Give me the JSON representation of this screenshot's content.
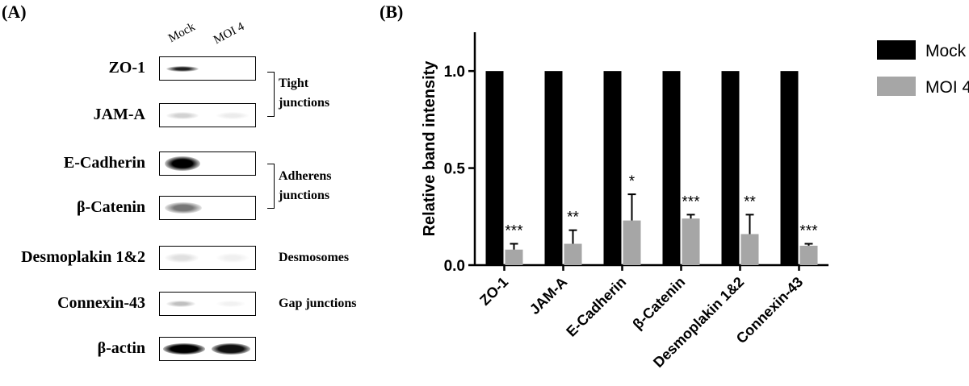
{
  "panel_a": {
    "label": "(A)",
    "lane_headers": [
      "Mock",
      "MOI 4"
    ],
    "proteins": [
      "ZO-1",
      "JAM-A",
      "E-Cadherin",
      "β-Catenin",
      "Desmoplakin 1&2",
      "Connexin-43",
      "β-actin"
    ],
    "groups": [
      {
        "line1": "Tight",
        "line2": "junctions"
      },
      {
        "line1": "Adherens",
        "line2": "junctions"
      },
      {
        "line1": "Desmosomes",
        "line2": ""
      },
      {
        "line1": "Gap junctions",
        "line2": ""
      }
    ]
  },
  "panel_b": {
    "label": "(B)"
  },
  "chart_data": {
    "type": "bar",
    "categories": [
      "ZO-1",
      "JAM-A",
      "E-Cadherin",
      "β-Catenin",
      "Desmoplakin 1&2",
      "Connexin-43"
    ],
    "series": [
      {
        "name": "Mock",
        "color": "#000000",
        "values": [
          1.0,
          1.0,
          1.0,
          1.0,
          1.0,
          1.0
        ]
      },
      {
        "name": "MOI 4",
        "color": "#a6a6a6",
        "values": [
          0.08,
          0.11,
          0.23,
          0.24,
          0.16,
          0.1
        ],
        "errors": [
          0.03,
          0.07,
          0.135,
          0.02,
          0.1,
          0.01
        ]
      }
    ],
    "significance": [
      "***",
      "**",
      "*",
      "***",
      "**",
      "***"
    ],
    "ylabel": "Relative band intensity",
    "xlabel": "",
    "ylim": [
      0,
      1.2
    ],
    "yticks": [
      "0.0",
      "0.5",
      "1.0"
    ],
    "legend": "top-right"
  }
}
